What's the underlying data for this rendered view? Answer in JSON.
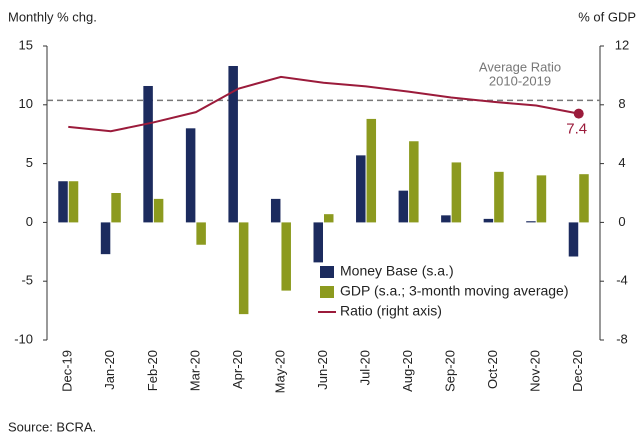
{
  "chart_data": {
    "type": "bar_line",
    "y_label": "Monthly % chg.",
    "y2_label": "% of GDP",
    "source": "Source: BCRA.",
    "categories": [
      "Dec-19",
      "Jan-20",
      "Feb-20",
      "Mar-20",
      "Apr-20",
      "May-20",
      "Jun-20",
      "Jul-20",
      "Aug-20",
      "Sep-20",
      "Oct-20",
      "Nov-20",
      "Dec-20"
    ],
    "series": [
      {
        "name": "Money Base (s.a.)",
        "color": "#1c2b5e",
        "kind": "bar",
        "values": [
          3.5,
          -2.7,
          11.6,
          8.0,
          13.3,
          2.0,
          -3.4,
          5.7,
          2.7,
          0.6,
          0.3,
          0.1,
          -2.9
        ]
      },
      {
        "name": "GDP (s.a.; 3-month moving average)",
        "color": "#8c9a1f",
        "kind": "bar",
        "values": [
          3.5,
          2.5,
          2.0,
          -1.9,
          -7.8,
          -5.8,
          0.7,
          8.8,
          6.9,
          5.1,
          4.3,
          4.0,
          4.1
        ]
      },
      {
        "name": "Ratio (right axis)",
        "color": "#9b1b3b",
        "kind": "line",
        "axis": "y2",
        "values": [
          6.5,
          6.2,
          6.8,
          7.5,
          9.1,
          9.9,
          9.5,
          9.25,
          8.9,
          8.5,
          8.2,
          7.95,
          7.4
        ],
        "value_labels": [
          null,
          null,
          null,
          null,
          null,
          null,
          null,
          null,
          null,
          null,
          null,
          null,
          "7.4"
        ]
      }
    ],
    "reference": {
      "lines": [
        "Average Ratio",
        "2010-2019"
      ],
      "value": 8.3,
      "axis": "y2",
      "color": "#777777"
    },
    "ylim": [
      -10,
      15
    ],
    "yticks": [
      -10,
      -5,
      0,
      5,
      10,
      15
    ],
    "y2lim": [
      -8,
      12
    ],
    "y2ticks": [
      -8,
      -4,
      0,
      4,
      8,
      12
    ]
  }
}
